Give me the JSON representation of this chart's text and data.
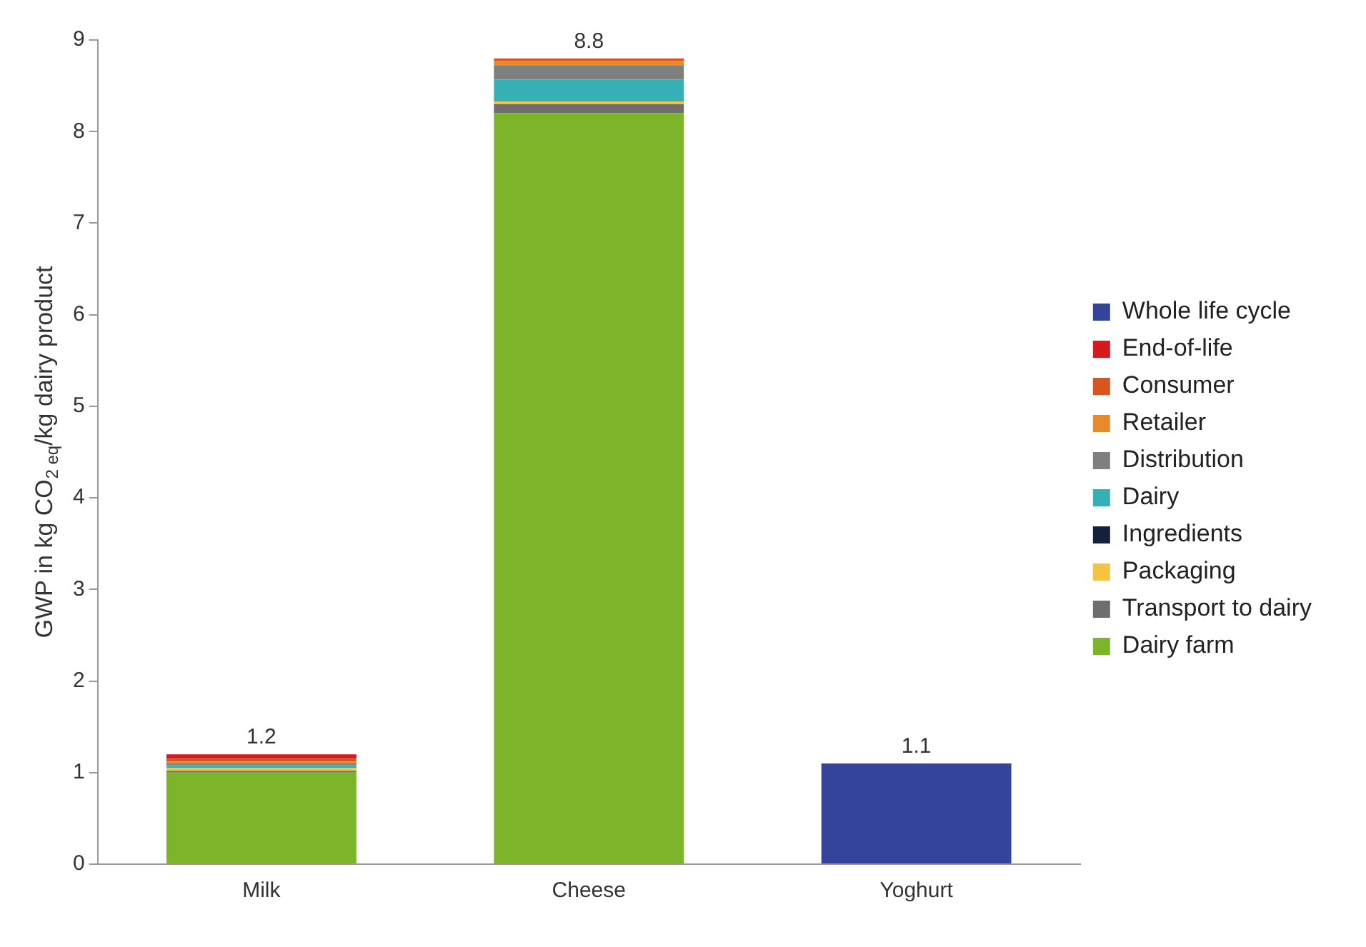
{
  "chart_data": {
    "type": "bar",
    "stacked": true,
    "ylabel": "GWP in kg CO$_{2 eq}$/kg dairy product",
    "categories": [
      "Milk",
      "Cheese",
      "Yoghurt"
    ],
    "series": [
      {
        "name": "Dairy farm",
        "color": "#7cb52a",
        "values": [
          1.0,
          8.2,
          null
        ]
      },
      {
        "name": "Transport to dairy",
        "color": "#6e6e6e",
        "values": [
          0.02,
          0.1,
          null
        ]
      },
      {
        "name": "Packaging",
        "color": "#f5c242",
        "values": [
          0.03,
          0.03,
          null
        ]
      },
      {
        "name": "Ingredients",
        "color": "#14213d",
        "values": [
          null,
          null,
          null
        ]
      },
      {
        "name": "Dairy",
        "color": "#35b0b5",
        "values": [
          0.03,
          0.24,
          null
        ]
      },
      {
        "name": "Distribution",
        "color": "#7f7f7f",
        "values": [
          0.02,
          0.15,
          null
        ]
      },
      {
        "name": "Retailer",
        "color": "#e8892b",
        "values": [
          0.02,
          0.05,
          null
        ]
      },
      {
        "name": "Consumer",
        "color": "#d9541e",
        "values": [
          0.03,
          0.03,
          null
        ]
      },
      {
        "name": "End-of-life",
        "color": "#d7191c",
        "values": [
          0.05,
          null,
          null
        ]
      },
      {
        "name": "Whole life cycle",
        "color": "#34449a",
        "values": [
          null,
          null,
          1.1
        ]
      }
    ],
    "totals": [
      "1.2",
      "8.8",
      "1.1"
    ],
    "ylim": [
      0,
      9
    ],
    "yticks": [
      0,
      1,
      2,
      3,
      4,
      5,
      6,
      7,
      8,
      9
    ],
    "grid": false,
    "legend": "right"
  }
}
